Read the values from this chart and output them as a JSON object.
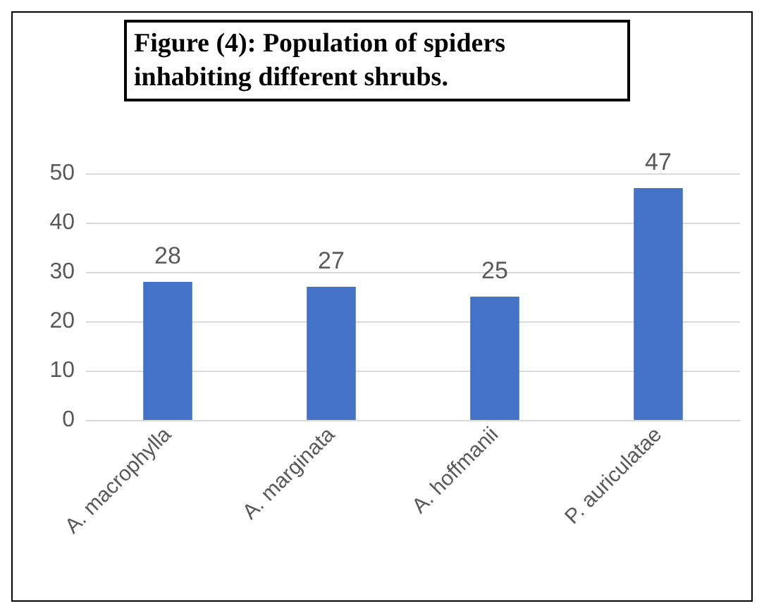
{
  "chart_data": {
    "type": "bar",
    "title": "Figure (4): Population of spiders inhabiting different shrubs.",
    "categories": [
      "A. macrophylla",
      "A. marginata",
      "A. hoffmanii",
      "P. auriculatae"
    ],
    "values": [
      28,
      27,
      25,
      47
    ],
    "color": "#4472c4",
    "ylim": [
      0,
      50
    ],
    "yticks": [
      0,
      10,
      20,
      30,
      40,
      50
    ],
    "grid": "y",
    "data_labels": true
  }
}
